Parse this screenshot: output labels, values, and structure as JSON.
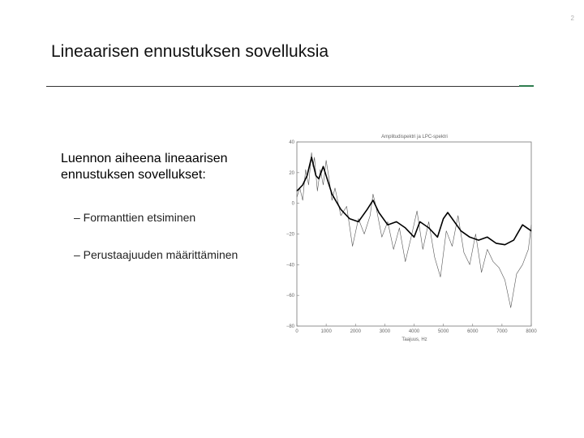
{
  "page_number": "2",
  "slide": {
    "title": "Lineaarisen ennustuksen sovelluksia",
    "lead": "Luennon aiheena lineaarisen ennustuksen sovellukset:",
    "bullets": [
      "– Formanttien etsiminen",
      "– Perustaajuuden määrittäminen"
    ]
  },
  "chart_data": {
    "type": "line",
    "title": "Amplitudispektri ja LPC-spektri",
    "xlabel": "Taajuus, Hz",
    "ylabel": "",
    "xlim": [
      0,
      8000
    ],
    "ylim": [
      -80,
      40
    ],
    "x_ticks": [
      "0",
      "1000",
      "2000",
      "3000",
      "4000",
      "5000",
      "6000",
      "7000",
      "8000"
    ],
    "y_ticks": [
      "40",
      "20",
      "0",
      "−20",
      "−40",
      "−60",
      "−80"
    ],
    "grid": false,
    "series": [
      {
        "style": "thin-jagged",
        "color": "#555555",
        "x": [
          0,
          100,
          200,
          300,
          400,
          500,
          550,
          600,
          700,
          800,
          900,
          1000,
          1100,
          1200,
          1300,
          1500,
          1700,
          1900,
          2100,
          2300,
          2500,
          2600,
          2700,
          2900,
          3100,
          3300,
          3500,
          3700,
          3900,
          4100,
          4300,
          4500,
          4700,
          4900,
          5100,
          5300,
          5500,
          5700,
          5900,
          6100,
          6300,
          6500,
          6700,
          6900,
          7100,
          7300,
          7500,
          7700,
          7900,
          8000
        ],
        "y": [
          4,
          10,
          2,
          22,
          12,
          33,
          24,
          30,
          8,
          22,
          12,
          28,
          16,
          2,
          10,
          -8,
          -2,
          -28,
          -10,
          -20,
          -8,
          6,
          -2,
          -22,
          -12,
          -30,
          -16,
          -38,
          -22,
          -5,
          -30,
          -12,
          -35,
          -48,
          -18,
          -28,
          -8,
          -32,
          -40,
          -20,
          -45,
          -30,
          -38,
          -42,
          -50,
          -68,
          -46,
          -40,
          -30,
          -14
        ]
      },
      {
        "style": "smooth-envelope",
        "color": "#000000",
        "x": [
          0,
          200,
          350,
          500,
          650,
          750,
          900,
          1000,
          1200,
          1500,
          1800,
          2100,
          2400,
          2600,
          2800,
          3100,
          3400,
          3700,
          4000,
          4200,
          4500,
          4800,
          5000,
          5150,
          5300,
          5600,
          5900,
          6200,
          6500,
          6800,
          7100,
          7400,
          7700,
          8000
        ],
        "y": [
          8,
          12,
          18,
          30,
          18,
          16,
          24,
          18,
          6,
          -4,
          -10,
          -12,
          -4,
          2,
          -6,
          -14,
          -12,
          -16,
          -22,
          -12,
          -16,
          -22,
          -10,
          -6,
          -10,
          -18,
          -22,
          -24,
          -22,
          -26,
          -27,
          -24,
          -14,
          -18
        ]
      }
    ]
  }
}
